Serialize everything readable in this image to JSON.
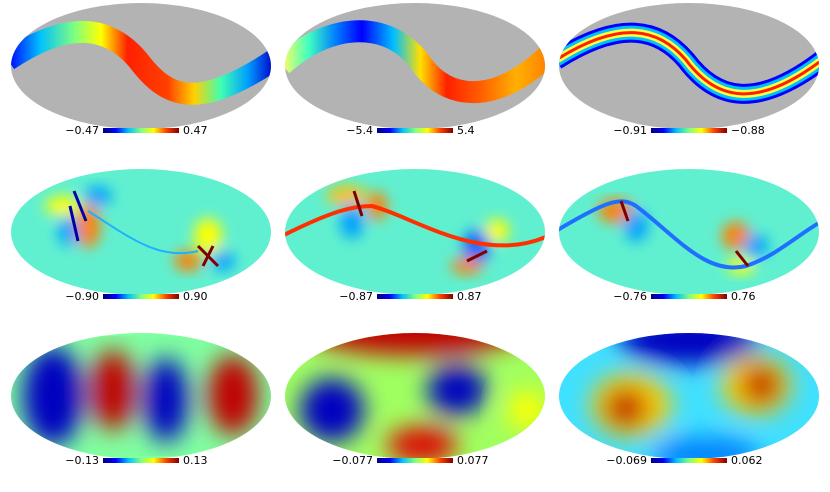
{
  "defs_note": "",
  "panels": [
    {
      "min": "−0.47",
      "max": "0.47"
    },
    {
      "min": "−5.4",
      "max": "5.4"
    },
    {
      "min": "−0.91",
      "max": "−0.88"
    },
    {
      "min": "−0.90",
      "max": "0.90"
    },
    {
      "min": "−0.87",
      "max": "0.87"
    },
    {
      "min": "−0.76",
      "max": "0.76"
    },
    {
      "min": "−0.13",
      "max": "0.13"
    },
    {
      "min": "−0.077",
      "max": "0.077"
    },
    {
      "min": "−0.069",
      "max": "0.062"
    }
  ],
  "colors": {
    "masked": "#b3b3b3",
    "jet": [
      "#00007f",
      "#0000ff",
      "#00bfff",
      "#7fff7f",
      "#ffff00",
      "#ff4000",
      "#7f0000"
    ]
  }
}
